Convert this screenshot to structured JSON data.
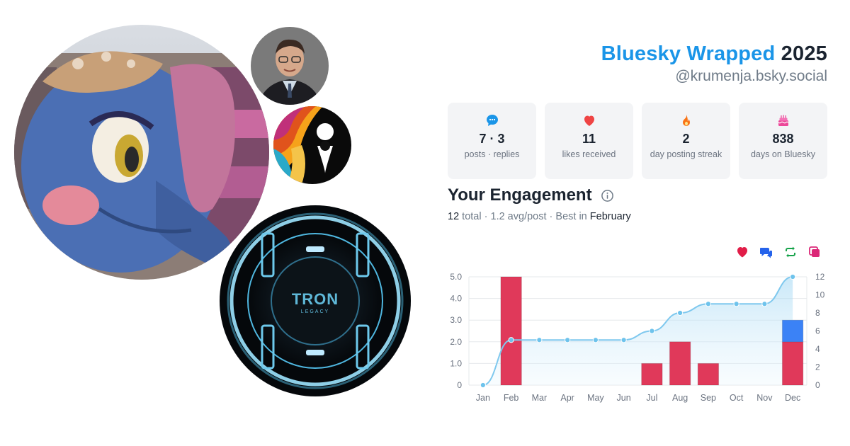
{
  "header": {
    "brand": "Bluesky Wrapped",
    "year": "2025",
    "handle": "@krumenja.bsky.social"
  },
  "avatars": [
    {
      "name": "elephant-avatar"
    },
    {
      "name": "man-avatar"
    },
    {
      "name": "map-pin-avatar"
    },
    {
      "name": "tron-avatar",
      "text": "TRON",
      "subtext": "LEGACY"
    }
  ],
  "stats": [
    {
      "icon": "chat-bubble-icon",
      "value": "7 · 3",
      "label": "posts · replies",
      "color": "#1a95e8"
    },
    {
      "icon": "heart-icon",
      "value": "11",
      "label": "likes received",
      "color": "#ef4444"
    },
    {
      "icon": "flame-icon",
      "value": "2",
      "label": "day posting streak",
      "color": "#f97316"
    },
    {
      "icon": "cake-icon",
      "value": "838",
      "label": "days on Bluesky",
      "color": "#ec4899"
    }
  ],
  "engagement": {
    "title": "Your Engagement",
    "total": "12",
    "total_label": "total",
    "avg": "1.2 avg/post",
    "best_prefix": "Best in",
    "best_month": "February"
  },
  "legend": [
    {
      "icon": "heart-icon",
      "color": "#e11d48"
    },
    {
      "icon": "reply-icon",
      "color": "#2563eb"
    },
    {
      "icon": "repost-icon",
      "color": "#16a34a"
    },
    {
      "icon": "quote-icon",
      "color": "#db2777"
    }
  ],
  "chart_data": {
    "type": "bar",
    "categories": [
      "Jan",
      "Feb",
      "Mar",
      "Apr",
      "May",
      "Jun",
      "Jul",
      "Aug",
      "Sep",
      "Oct",
      "Nov",
      "Dec"
    ],
    "series": [
      {
        "values": [
          0,
          5,
          0,
          0,
          0,
          0,
          1,
          2,
          1,
          0,
          0,
          2
        ],
        "color": "#e0395a"
      },
      {
        "values": [
          0,
          0,
          0,
          0,
          0,
          0,
          0,
          0,
          0,
          0,
          0,
          1
        ],
        "color": "#3b82f6"
      }
    ],
    "line": {
      "values": [
        0,
        5,
        5,
        5,
        5,
        5,
        6,
        8,
        9,
        9,
        9,
        12
      ],
      "color": "#7ec8ee"
    },
    "y_left": {
      "ticks": [
        "0",
        "1.0",
        "2.0",
        "3.0",
        "4.0",
        "5.0"
      ],
      "ylim": [
        0,
        5
      ]
    },
    "y_right": {
      "ticks": [
        "0",
        "2",
        "4",
        "6",
        "8",
        "10",
        "12"
      ],
      "ylim": [
        0,
        12
      ]
    },
    "grid": true
  }
}
